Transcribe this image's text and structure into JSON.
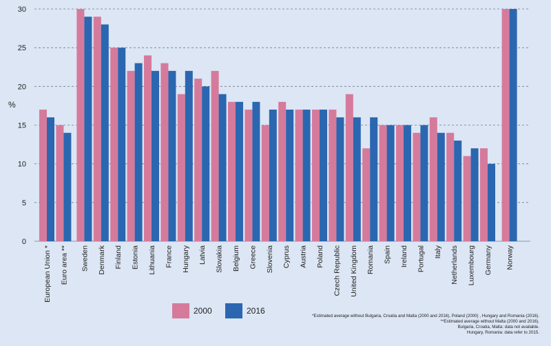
{
  "chart_data": {
    "type": "bar",
    "title": "",
    "xlabel": "",
    "ylabel": "%",
    "ylim": [
      0,
      30
    ],
    "yticks": [
      0,
      5,
      10,
      15,
      20,
      25,
      30
    ],
    "grid": "horizontal dashed",
    "legend_position": "bottom",
    "categories": [
      "European Union *",
      "Euro area **",
      "Sweden",
      "Denmark",
      "Finland",
      "Estonia",
      "Lithuania",
      "France",
      "Hungary",
      "Latvia",
      "Slovakia",
      "Belgium",
      "Greece",
      "Slovenia",
      "Cyprus",
      "Austria",
      "Poland",
      "Czech Republic",
      "United Kingdom",
      "Romania",
      "Spain",
      "Ireland",
      "Portugal",
      "Italy",
      "Netherlands",
      "Luxembourg",
      "Germany",
      "Norway"
    ],
    "series": [
      {
        "name": "2000",
        "color": "#d67a9c",
        "values": [
          17,
          15,
          30,
          29,
          25,
          22,
          24,
          23,
          19,
          21,
          22,
          18,
          17,
          15,
          18,
          17,
          17,
          17,
          19,
          12,
          15,
          15,
          14,
          16,
          14,
          11,
          12,
          30
        ]
      },
      {
        "name": "2016",
        "color": "#2b66b0",
        "values": [
          16,
          14,
          29,
          28,
          25,
          23,
          22,
          22,
          22,
          20,
          19,
          18,
          18,
          17,
          17,
          17,
          17,
          16,
          16,
          16,
          15,
          15,
          15,
          14,
          13,
          12,
          10,
          30
        ]
      }
    ],
    "footnotes": [
      "*Estimated average without Bulgaria, Croatia and Malta (2000 and 2016), Poland (2000) , Hungary and Romania (2016).",
      "**Estimated average without Malta (2000 and 2016).",
      "Bulgaria, Croatia, Malta: data not available.",
      "Hungary, Romania: data refer to 2015."
    ]
  }
}
